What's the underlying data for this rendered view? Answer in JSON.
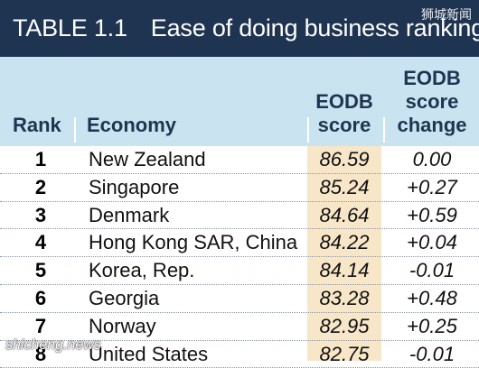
{
  "title": {
    "number": "TABLE 1.1",
    "text": "Ease of doing business ranking"
  },
  "watermark_top": "狮城新闻",
  "watermark_bottom": "shicheng.news",
  "columns": {
    "rank": "Rank",
    "economy": "Economy",
    "score": "EODB score",
    "change": "EODB score change"
  },
  "rows": [
    {
      "rank": "1",
      "economy": "New Zealand",
      "score": "86.59",
      "change": "0.00"
    },
    {
      "rank": "2",
      "economy": "Singapore",
      "score": "85.24",
      "change": "+0.27"
    },
    {
      "rank": "3",
      "economy": "Denmark",
      "score": "84.64",
      "change": "+0.59"
    },
    {
      "rank": "4",
      "economy": "Hong Kong SAR, China",
      "score": "84.22",
      "change": "+0.04"
    },
    {
      "rank": "5",
      "economy": "Korea, Rep.",
      "score": "84.14",
      "change": "-0.01"
    },
    {
      "rank": "6",
      "economy": "Georgia",
      "score": "83.28",
      "change": "+0.48"
    },
    {
      "rank": "7",
      "economy": "Norway",
      "score": "82.95",
      "change": "+0.25"
    },
    {
      "rank": "8",
      "economy": "United States",
      "score": "82.75",
      "change": "-0.01"
    }
  ],
  "colors": {
    "title_bg": "#1f3451",
    "header_bg": "#c9e4f0",
    "score_column_bg": "#f8e6c9",
    "header_text": "#1f3451"
  }
}
